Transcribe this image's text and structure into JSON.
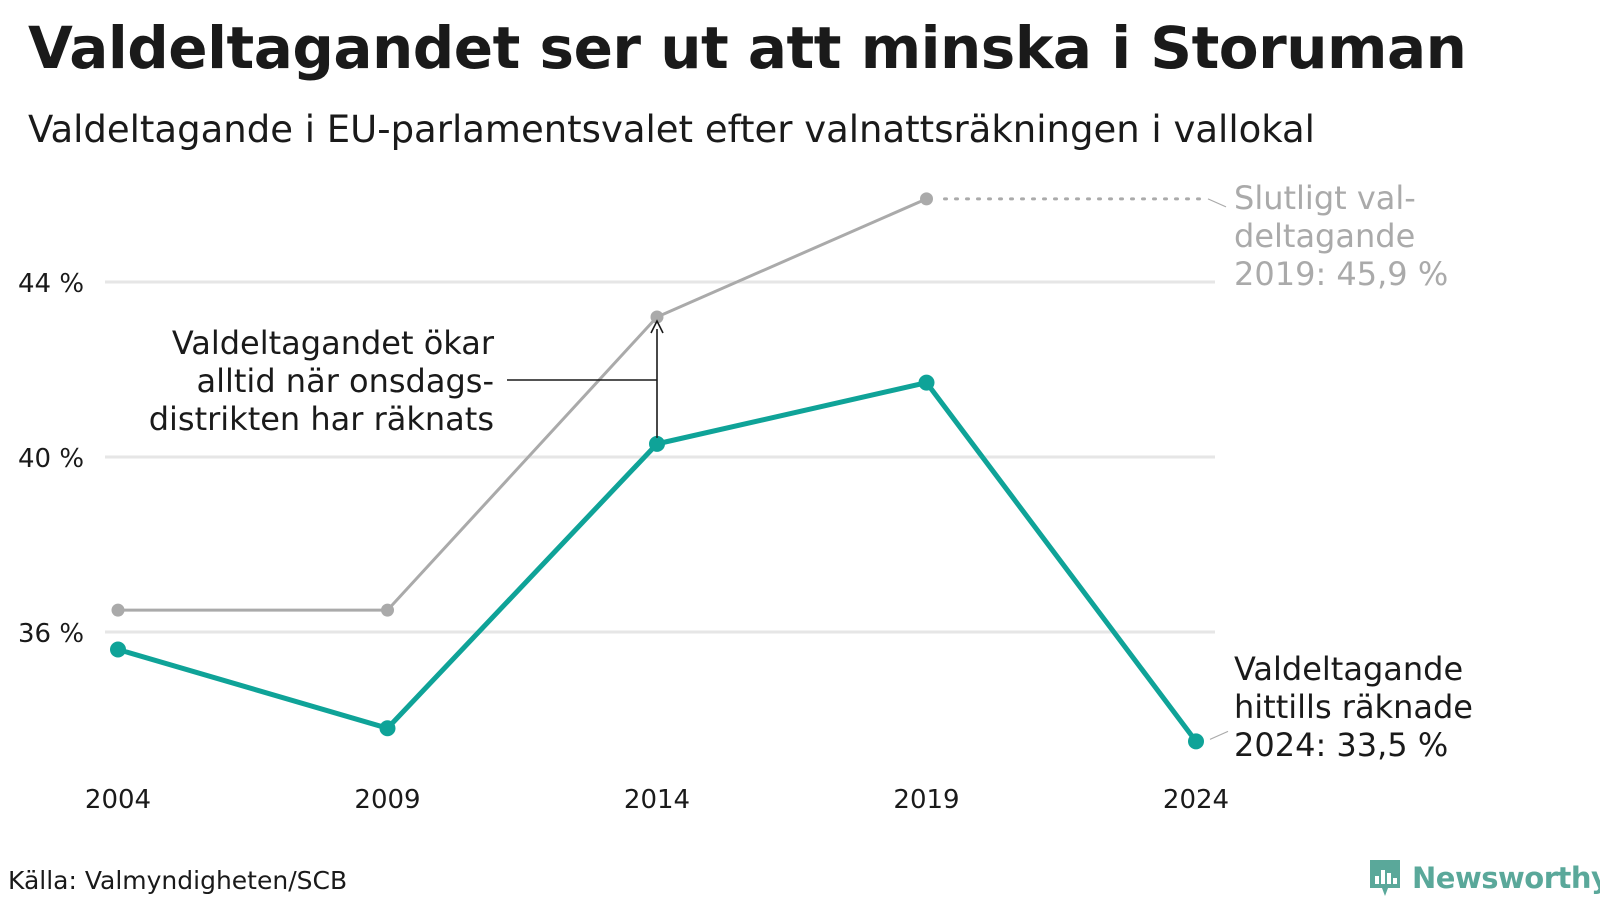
{
  "title": "Valdeltagandet ser ut att minska i Storuman",
  "subtitle": "Valdeltagande i EU-parlamentsvalet efter valnattsräkningen i vallokal",
  "source": "Källa: Valmyndigheten/SCB",
  "logo_text": "Newsworthy",
  "colors": {
    "teal": "#0fa398",
    "gray": "#aaaaaa",
    "grid": "#e6e6e6",
    "logo": "#5aa89a"
  },
  "chart_data": {
    "type": "line",
    "x": [
      2004,
      2009,
      2014,
      2019,
      2024
    ],
    "x_tick_labels": [
      "2004",
      "2009",
      "2014",
      "2019",
      "2024"
    ],
    "ylim": [
      33,
      47
    ],
    "y_ticks": [
      36,
      40,
      44
    ],
    "y_tick_labels": [
      "36 %",
      "40 %",
      "44 %"
    ],
    "grid": true,
    "series": [
      {
        "key": "final",
        "color": "#aaaaaa",
        "x": [
          2004,
          2009,
          2014,
          2019
        ],
        "values": [
          36.5,
          36.5,
          43.2,
          45.9
        ]
      },
      {
        "key": "counted",
        "color": "#0fa398",
        "x": [
          2004,
          2009,
          2014,
          2019,
          2024
        ],
        "values": [
          35.6,
          33.8,
          40.3,
          41.7,
          33.5
        ]
      }
    ],
    "annotations": {
      "final": [
        "Slutligt val-",
        "deltagande",
        "2019: 45,9 %"
      ],
      "counted": [
        "Valdeltagande",
        "hittills räknade",
        "2024: 33,5 %"
      ],
      "increase": [
        "Valdeltagandet ökar",
        "alltid när onsdags-",
        "distrikten har räknats"
      ]
    }
  }
}
